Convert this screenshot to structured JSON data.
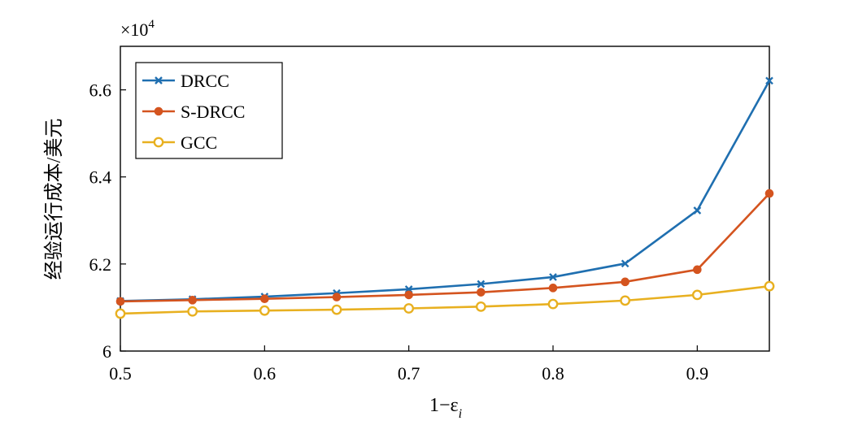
{
  "chart_data": {
    "type": "line",
    "title": "",
    "xlabel": "1−ε",
    "xlabel_sub": "i",
    "ylabel": "经验运行成本/美元",
    "y_exponent_label": "×10",
    "y_exponent_power": "4",
    "xlim": [
      0.5,
      0.95
    ],
    "ylim": [
      6.0,
      6.7
    ],
    "x_ticks": [
      0.5,
      0.6,
      0.7,
      0.8,
      0.9
    ],
    "x_tick_labels": [
      "0.5",
      "0.6",
      "0.7",
      "0.8",
      "0.9"
    ],
    "y_ticks": [
      6.0,
      6.2,
      6.4,
      6.6
    ],
    "y_tick_labels": [
      "6",
      "6.2",
      "6.4",
      "6.6"
    ],
    "x": [
      0.5,
      0.55,
      0.6,
      0.65,
      0.7,
      0.75,
      0.8,
      0.85,
      0.9,
      0.95
    ],
    "legend_position": "top-left",
    "grid": false,
    "series": [
      {
        "name": "DRCC",
        "color": "#1f6fb0",
        "marker": "x-marker",
        "values": [
          6.115,
          6.119,
          6.125,
          6.133,
          6.142,
          6.154,
          6.17,
          6.201,
          6.323,
          6.621
        ]
      },
      {
        "name": "S-DRCC",
        "color": "#d4541f",
        "marker": "filled-circle",
        "values": [
          6.114,
          6.117,
          6.12,
          6.124,
          6.129,
          6.135,
          6.145,
          6.159,
          6.187,
          6.362
        ]
      },
      {
        "name": "GCC",
        "color": "#e8b020",
        "marker": "open-circle",
        "values": [
          6.086,
          6.091,
          6.093,
          6.095,
          6.098,
          6.102,
          6.108,
          6.116,
          6.129,
          6.149
        ]
      }
    ]
  }
}
